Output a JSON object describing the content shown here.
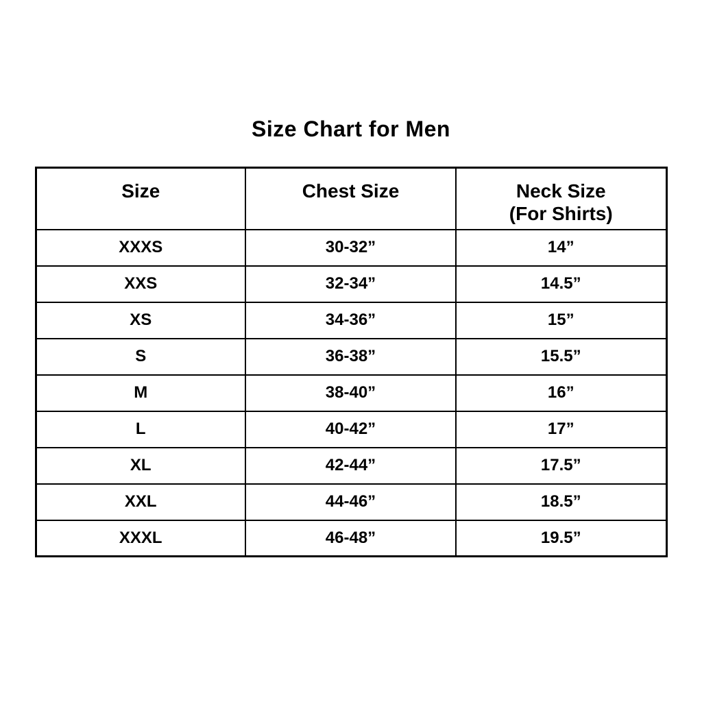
{
  "title": "Size Chart for Men",
  "colors": {
    "background": "#ffffff",
    "text": "#000000",
    "border": "#000000"
  },
  "table": {
    "headers": [
      {
        "label": "Size",
        "sublabel": ""
      },
      {
        "label": "Chest Size",
        "sublabel": ""
      },
      {
        "label": "Neck Size",
        "sublabel": "(For Shirts)"
      }
    ],
    "rows": [
      {
        "size": "XXXS",
        "chest": "30-32”",
        "neck": "14”"
      },
      {
        "size": "XXS",
        "chest": "32-34”",
        "neck": "14.5”"
      },
      {
        "size": "XS",
        "chest": "34-36”",
        "neck": "15”"
      },
      {
        "size": "S",
        "chest": "36-38”",
        "neck": "15.5”"
      },
      {
        "size": "M",
        "chest": "38-40”",
        "neck": "16”"
      },
      {
        "size": "L",
        "chest": "40-42”",
        "neck": "17”"
      },
      {
        "size": "XL",
        "chest": "42-44”",
        "neck": "17.5”"
      },
      {
        "size": "XXL",
        "chest": "44-46”",
        "neck": "18.5”"
      },
      {
        "size": "XXXL",
        "chest": "46-48”",
        "neck": "19.5”"
      }
    ]
  },
  "chart_data": {
    "type": "table",
    "title": "Size Chart for Men",
    "columns": [
      "Size",
      "Chest Size",
      "Neck Size (For Shirts)"
    ],
    "rows": [
      [
        "XXXS",
        "30-32”",
        "14”"
      ],
      [
        "XXS",
        "32-34”",
        "14.5”"
      ],
      [
        "XS",
        "34-36”",
        "15”"
      ],
      [
        "S",
        "36-38”",
        "15.5”"
      ],
      [
        "M",
        "38-40”",
        "16”"
      ],
      [
        "L",
        "40-42”",
        "17”"
      ],
      [
        "XL",
        "42-44”",
        "17.5”"
      ],
      [
        "XXL",
        "44-46”",
        "18.5”"
      ],
      [
        "XXXL",
        "46-48”",
        "19.5”"
      ]
    ],
    "layout": {
      "header_row": true,
      "grid": "all-borders",
      "text_align": "center"
    }
  }
}
